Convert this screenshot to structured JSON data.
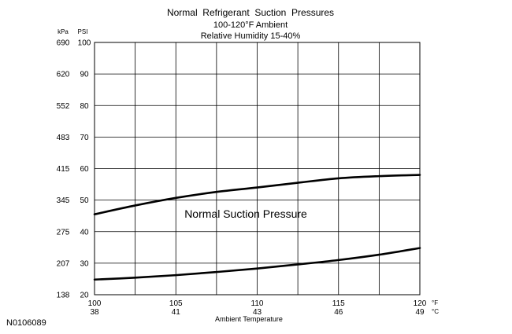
{
  "chart_data": {
    "type": "line",
    "title": "Normal  Refrigerant  Suction  Pressures",
    "subtitle_lines": [
      "100-120°F Ambient",
      "Relative Humidity 15-40%"
    ],
    "xlabel": "Ambient Temperature",
    "y_unit_left": "kPa",
    "y_unit_right": "PSI",
    "x_unit_primary": "°F",
    "x_unit_secondary": "°C",
    "xlim": [
      100,
      120
    ],
    "ylim": [
      20,
      100
    ],
    "grid": true,
    "x_ticks": [
      {
        "value": 100,
        "f": "100",
        "c": "38"
      },
      {
        "value": 105,
        "f": "105",
        "c": "41"
      },
      {
        "value": 110,
        "f": "110",
        "c": "43"
      },
      {
        "value": 115,
        "f": "115",
        "c": "46"
      },
      {
        "value": 120,
        "f": "120",
        "c": "49"
      }
    ],
    "x_minor_gridlines": [
      102.5,
      107.5,
      112.5,
      117.5
    ],
    "y_ticks": [
      {
        "value": 100,
        "psi": "100",
        "kpa": "690"
      },
      {
        "value": 90,
        "psi": "90",
        "kpa": "620"
      },
      {
        "value": 80,
        "psi": "80",
        "kpa": "552"
      },
      {
        "value": 70,
        "psi": "70",
        "kpa": "483"
      },
      {
        "value": 60,
        "psi": "60",
        "kpa": "415"
      },
      {
        "value": 50,
        "psi": "50",
        "kpa": "345"
      },
      {
        "value": 40,
        "psi": "40",
        "kpa": "275"
      },
      {
        "value": 30,
        "psi": "30",
        "kpa": "207"
      },
      {
        "value": 20,
        "psi": "20",
        "kpa": "138"
      }
    ],
    "annotation": "Normal Suction Pressure",
    "series": [
      {
        "x": [
          100,
          102.5,
          105,
          107.5,
          110,
          112.5,
          115,
          117.5,
          120
        ],
        "values": [
          45.5,
          48.3,
          50.7,
          52.6,
          54.0,
          55.5,
          56.9,
          57.6,
          58.0
        ]
      },
      {
        "x": [
          100,
          102.5,
          105,
          107.5,
          110,
          112.5,
          115,
          117.5,
          120
        ],
        "values": [
          24.8,
          25.4,
          26.2,
          27.2,
          28.3,
          29.6,
          31.0,
          32.7,
          34.8
        ]
      }
    ]
  },
  "figure_id": "N0106089"
}
